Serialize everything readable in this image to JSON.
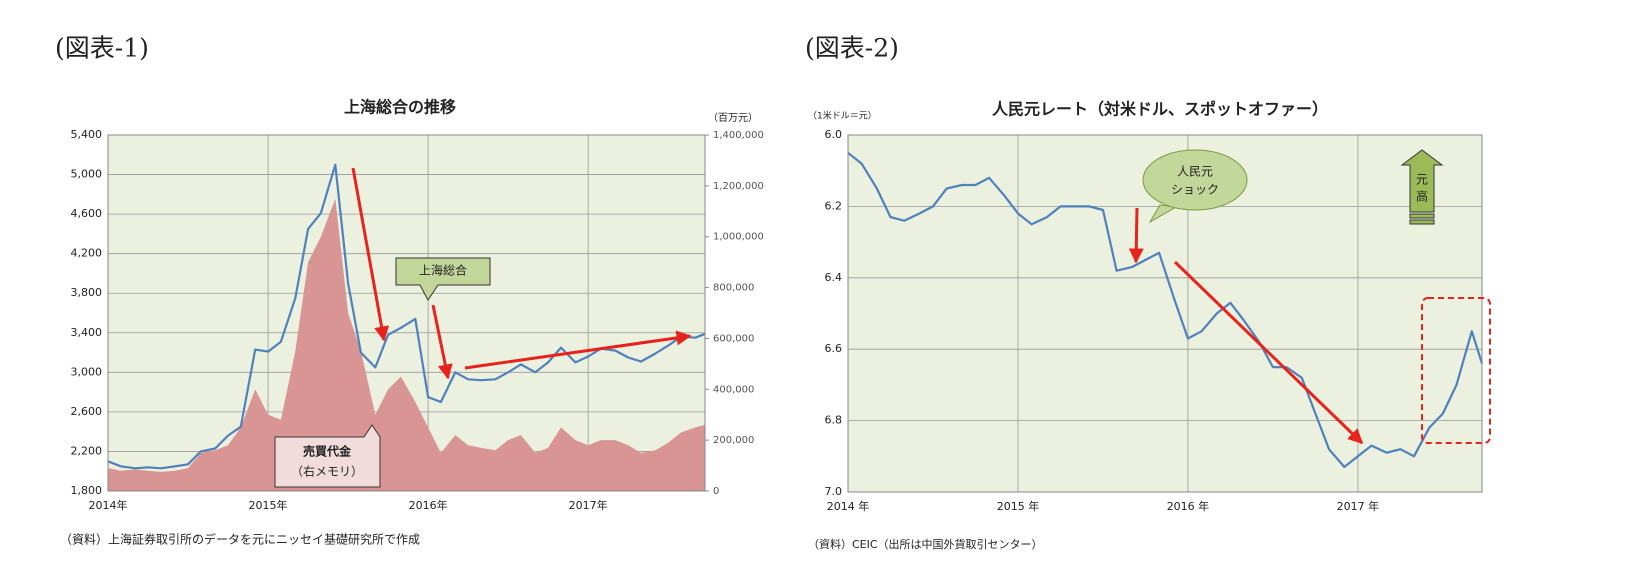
{
  "header": [
    "(図表-1)",
    "(図表-2)"
  ],
  "chart_data": [
    {
      "type": "line",
      "title": "上海総合の推移",
      "y2_label": "（百万元）",
      "source": "（資料）上海証券取引所のデータを元にニッセイ基礎研究所で作成",
      "annotations": [
        "（右メモリ）"
      ],
      "x": [
        2014,
        2014.08,
        2014.17,
        2014.25,
        2014.33,
        2014.42,
        2014.5,
        2014.58,
        2014.67,
        2014.75,
        2014.83,
        2014.92,
        2015,
        2015.08,
        2015.17,
        2015.25,
        2015.33,
        2015.42,
        2015.5,
        2015.58,
        2015.67,
        2015.75,
        2015.83,
        2015.92,
        2016,
        2016.08,
        2016.17,
        2016.25,
        2016.33,
        2016.42,
        2016.5,
        2016.58,
        2016.67,
        2016.75,
        2016.83,
        2016.92,
        2017,
        2017.08,
        2017.17,
        2017.25,
        2017.33,
        2017.42,
        2017.5,
        2017.58,
        2017.67,
        2017.73
      ],
      "xlim": [
        2014,
        2017.73
      ],
      "xticks": [
        {
          "value": 2014,
          "label": "2014年"
        },
        {
          "value": 2015,
          "label": "2015年"
        },
        {
          "value": 2016,
          "label": "2016年"
        },
        {
          "value": 2017,
          "label": "2017年"
        }
      ],
      "ylim": [
        1800,
        5400
      ],
      "yticks": [
        {
          "value": 1800,
          "label": "1,800"
        },
        {
          "value": 2200,
          "label": "2,200"
        },
        {
          "value": 2600,
          "label": "2,600"
        },
        {
          "value": 3000,
          "label": "3,000"
        },
        {
          "value": 3400,
          "label": "3,400"
        },
        {
          "value": 3800,
          "label": "3,800"
        },
        {
          "value": 4200,
          "label": "4,200"
        },
        {
          "value": 4600,
          "label": "4,600"
        },
        {
          "value": 5000,
          "label": "5,000"
        },
        {
          "value": 5400,
          "label": "5,400"
        }
      ],
      "y2lim": [
        0,
        1400000
      ],
      "y2ticks": [
        0,
        {
          "value": 200000,
          "label": "200,000"
        },
        {
          "value": 400000,
          "label": "400,000"
        },
        {
          "value": 600000,
          "label": "600,000"
        },
        {
          "value": 800000,
          "label": "800,000"
        },
        {
          "value": 1000000,
          "label": "1,000,000"
        },
        {
          "value": 1200000,
          "label": "1,200,000"
        },
        {
          "value": 1400000,
          "label": "1,400,000"
        }
      ],
      "grid": true,
      "series": [
        {
          "name": "売買代金",
          "kind": "area",
          "axis": "y2",
          "color": "#d99594",
          "values": [
            90000,
            80000,
            85000,
            80000,
            75000,
            80000,
            90000,
            150000,
            160000,
            180000,
            250000,
            400000,
            300000,
            280000,
            550000,
            900000,
            1000000,
            1150000,
            700000,
            550000,
            300000,
            400000,
            450000,
            350000,
            250000,
            150000,
            220000,
            180000,
            170000,
            160000,
            200000,
            220000,
            150000,
            170000,
            250000,
            200000,
            180000,
            200000,
            200000,
            180000,
            150000,
            160000,
            190000,
            230000,
            250000,
            260000
          ]
        },
        {
          "name": "上海総合",
          "kind": "line",
          "color": "#4f81bd",
          "values": [
            2100,
            2050,
            2030,
            2040,
            2030,
            2050,
            2070,
            2200,
            2230,
            2360,
            2450,
            3230,
            3210,
            3310,
            3750,
            4450,
            4610,
            5100,
            3900,
            3200,
            3050,
            3380,
            3450,
            3540,
            2750,
            2700,
            3000,
            2930,
            2920,
            2930,
            3000,
            3080,
            3000,
            3100,
            3250,
            3100,
            3160,
            3240,
            3220,
            3150,
            3110,
            3190,
            3270,
            3360,
            3350,
            3390
          ]
        }
      ]
    },
    {
      "type": "line",
      "title": "人民元レート（対米ドル、スポットオファー）",
      "y_label": "（1米ドル＝元）",
      "source": "（資料）CEIC（出所は中国外貨取引センター）",
      "annotations": [
        "人民元",
        "ショック",
        "元",
        "高"
      ],
      "x": [
        2014,
        2014.08,
        2014.17,
        2014.25,
        2014.33,
        2014.42,
        2014.5,
        2014.58,
        2014.67,
        2014.75,
        2014.83,
        2014.92,
        2015,
        2015.08,
        2015.17,
        2015.25,
        2015.33,
        2015.42,
        2015.5,
        2015.58,
        2015.67,
        2015.75,
        2015.83,
        2015.92,
        2016,
        2016.08,
        2016.17,
        2016.25,
        2016.33,
        2016.42,
        2016.5,
        2016.58,
        2016.67,
        2016.75,
        2016.83,
        2016.92,
        2017,
        2017.08,
        2017.17,
        2017.25,
        2017.33,
        2017.42,
        2017.5,
        2017.58,
        2017.67,
        2017.73
      ],
      "xlim": [
        2014,
        2017.73
      ],
      "xticks": [
        {
          "value": 2014,
          "label": "2014 年"
        },
        {
          "value": 2015,
          "label": "2015 年"
        },
        {
          "value": 2016,
          "label": "2016 年"
        },
        {
          "value": 2017,
          "label": "2017 年"
        }
      ],
      "ylim": [
        6.0,
        7.0
      ],
      "inverted": true,
      "yticks": [
        {
          "value": 6.0,
          "label": "6.0"
        },
        6.2,
        6.4,
        6.6,
        6.8,
        {
          "value": 7.0,
          "label": "7.0"
        }
      ],
      "grid": true,
      "series": [
        {
          "kind": "line",
          "color": "#4f81bd",
          "values": [
            6.05,
            6.08,
            6.15,
            6.23,
            6.24,
            6.22,
            6.2,
            6.15,
            6.14,
            6.14,
            6.12,
            6.17,
            6.22,
            6.25,
            6.23,
            6.2,
            6.2,
            6.2,
            6.21,
            6.38,
            6.37,
            6.35,
            6.33,
            6.46,
            6.57,
            6.55,
            6.5,
            6.47,
            6.52,
            6.58,
            6.65,
            6.65,
            6.68,
            6.78,
            6.88,
            6.93,
            6.9,
            6.87,
            6.89,
            6.88,
            6.9,
            6.82,
            6.78,
            6.7,
            6.55,
            6.64
          ]
        }
      ]
    }
  ]
}
